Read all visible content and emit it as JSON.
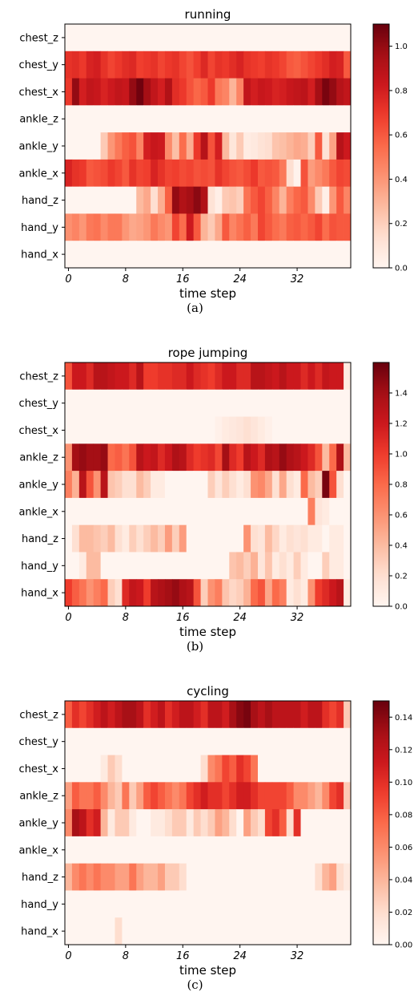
{
  "chart_data": [
    {
      "type": "heatmap",
      "title": "running",
      "caption": "(a)",
      "xlabel": "time step",
      "rows": [
        "chest_z",
        "chest_y",
        "chest_x",
        "ankle_z",
        "ankle_y",
        "ankle_x",
        "hand_z",
        "hand_y",
        "hand_x"
      ],
      "xticks": [
        0,
        8,
        16,
        24,
        32
      ],
      "n_steps": 40,
      "vmin": 0.0,
      "vmax": 1.1,
      "colorbar_ticks": [
        0.0,
        0.2,
        0.4,
        0.6,
        0.8,
        1.0
      ],
      "values": [
        [
          0,
          0,
          0,
          0,
          0,
          0,
          0,
          0,
          0,
          0,
          0,
          0,
          0,
          0,
          0,
          0,
          0,
          0,
          0,
          0,
          0,
          0,
          0,
          0,
          0,
          0,
          0,
          0,
          0,
          0,
          0,
          0,
          0,
          0,
          0,
          0,
          0,
          0,
          0,
          0
        ],
        [
          0.72,
          0.74,
          0.7,
          0.78,
          0.8,
          0.72,
          0.66,
          0.7,
          0.74,
          0.76,
          0.68,
          0.7,
          0.72,
          0.66,
          0.7,
          0.72,
          0.66,
          0.62,
          0.68,
          0.76,
          0.66,
          0.72,
          0.7,
          0.74,
          0.78,
          0.72,
          0.7,
          0.68,
          0.72,
          0.7,
          0.66,
          0.6,
          0.58,
          0.62,
          0.66,
          0.7,
          0.74,
          0.8,
          0.78,
          0.6
        ],
        [
          0.7,
          1.0,
          0.8,
          0.86,
          0.84,
          0.78,
          0.82,
          0.86,
          0.84,
          1.0,
          1.08,
          0.96,
          0.86,
          0.8,
          0.92,
          0.74,
          0.7,
          0.62,
          0.56,
          0.6,
          0.7,
          0.5,
          0.46,
          0.3,
          0.46,
          0.86,
          0.8,
          0.84,
          0.82,
          0.78,
          0.8,
          0.84,
          0.86,
          0.88,
          0.8,
          0.96,
          1.06,
          1.0,
          0.9,
          0.86
        ],
        [
          0,
          0,
          0,
          0,
          0,
          0,
          0,
          0,
          0,
          0,
          0,
          0,
          0,
          0,
          0,
          0,
          0,
          0,
          0,
          0,
          0,
          0,
          0,
          0,
          0,
          0,
          0,
          0,
          0,
          0,
          0,
          0,
          0,
          0,
          0,
          0,
          0,
          0,
          0,
          0
        ],
        [
          0,
          0,
          0,
          0,
          0,
          0.22,
          0.4,
          0.5,
          0.58,
          0.62,
          0.46,
          0.8,
          0.84,
          0.82,
          0.44,
          0.26,
          0.54,
          0.32,
          0.7,
          0.9,
          0.62,
          0.8,
          0.28,
          0.1,
          0.22,
          0.06,
          0.08,
          0.12,
          0.14,
          0.24,
          0.26,
          0.3,
          0.34,
          0.32,
          0.2,
          0.6,
          0.12,
          0.36,
          0.9,
          0.82
        ],
        [
          0.78,
          0.72,
          0.7,
          0.6,
          0.62,
          0.64,
          0.7,
          0.66,
          0.6,
          0.72,
          0.66,
          0.68,
          0.78,
          0.72,
          0.66,
          0.68,
          0.64,
          0.66,
          0.62,
          0.64,
          0.62,
          0.72,
          0.66,
          0.62,
          0.6,
          0.64,
          0.7,
          0.6,
          0.62,
          0.6,
          0.5,
          0.14,
          0.02,
          0.62,
          0.38,
          0.44,
          0.5,
          0.6,
          0.66,
          0.64
        ],
        [
          0,
          0,
          0,
          0,
          0,
          0,
          0,
          0,
          0,
          0,
          0.28,
          0.34,
          0.14,
          0.32,
          0.58,
          1.0,
          0.92,
          0.96,
          1.02,
          0.92,
          0.12,
          0.04,
          0.22,
          0.24,
          0.2,
          0.52,
          0.6,
          0.66,
          0.58,
          0.46,
          0.3,
          0.48,
          0.56,
          0.6,
          0.44,
          0.22,
          0.04,
          0.4,
          0.6,
          0.46
        ],
        [
          0.42,
          0.46,
          0.4,
          0.5,
          0.52,
          0.44,
          0.5,
          0.5,
          0.4,
          0.34,
          0.36,
          0.4,
          0.5,
          0.44,
          0.4,
          0.66,
          0.54,
          0.82,
          0.6,
          0.3,
          0.22,
          0.34,
          0.6,
          0.46,
          0.52,
          0.58,
          0.5,
          0.66,
          0.6,
          0.54,
          0.5,
          0.58,
          0.6,
          0.56,
          0.6,
          0.66,
          0.54,
          0.62,
          0.6,
          0.6
        ],
        [
          0,
          0,
          0,
          0,
          0,
          0,
          0,
          0,
          0,
          0,
          0,
          0,
          0,
          0,
          0,
          0,
          0,
          0,
          0,
          0,
          0,
          0,
          0,
          0,
          0,
          0,
          0,
          0,
          0,
          0,
          0,
          0,
          0,
          0,
          0,
          0,
          0,
          0,
          0,
          0
        ]
      ]
    },
    {
      "type": "heatmap",
      "title": "rope jumping",
      "caption": "(b)",
      "xlabel": "time step",
      "rows": [
        "chest_z",
        "chest_y",
        "chest_x",
        "ankle_z",
        "ankle_y",
        "ankle_x",
        "hand_z",
        "hand_y",
        "hand_x"
      ],
      "xticks": [
        0,
        8,
        16,
        24,
        32
      ],
      "n_steps": 40,
      "vmin": 0.0,
      "vmax": 1.6,
      "colorbar_ticks": [
        0.0,
        0.2,
        0.4,
        0.6,
        0.8,
        1.0,
        1.2,
        1.4
      ],
      "values": [
        [
          0.9,
          1.2,
          1.2,
          1.1,
          1.3,
          1.3,
          1.25,
          1.2,
          1.2,
          1.1,
          1.3,
          1.0,
          1.0,
          1.05,
          1.05,
          1.1,
          1.1,
          1.2,
          1.1,
          1.05,
          1.0,
          1.1,
          1.2,
          1.2,
          1.1,
          1.1,
          1.3,
          1.3,
          1.25,
          1.2,
          1.3,
          1.2,
          1.2,
          1.1,
          1.2,
          1.1,
          1.25,
          1.2,
          1.2,
          0.1
        ],
        [
          0,
          0,
          0,
          0,
          0,
          0,
          0,
          0,
          0,
          0,
          0,
          0,
          0,
          0,
          0,
          0,
          0,
          0,
          0,
          0,
          0,
          0,
          0,
          0,
          0,
          0,
          0,
          0,
          0,
          0,
          0,
          0,
          0,
          0,
          0,
          0,
          0,
          0,
          0,
          0
        ],
        [
          0,
          0,
          0,
          0,
          0,
          0,
          0,
          0,
          0,
          0,
          0,
          0,
          0,
          0,
          0,
          0,
          0,
          0,
          0,
          0,
          0,
          0.05,
          0.1,
          0.12,
          0.15,
          0.2,
          0.15,
          0.1,
          0.05,
          0,
          0,
          0,
          0,
          0,
          0,
          0,
          0,
          0,
          0,
          0
        ],
        [
          0.6,
          1.4,
          1.45,
          1.4,
          1.4,
          1.45,
          0.8,
          0.85,
          0.75,
          0.9,
          1.3,
          1.2,
          1.25,
          1.1,
          1.2,
          1.35,
          1.3,
          1.1,
          1.0,
          1.05,
          1.1,
          0.95,
          1.4,
          1.1,
          1.0,
          1.3,
          1.2,
          1.1,
          1.35,
          1.3,
          1.45,
          1.35,
          1.3,
          1.2,
          1.1,
          0.9,
          0.4,
          0.8,
          1.35,
          0.4
        ],
        [
          0.7,
          0.45,
          1.3,
          0.9,
          0.6,
          1.3,
          0.35,
          0.3,
          0.2,
          0.2,
          0.4,
          0.3,
          0.1,
          0.1,
          0,
          0,
          0,
          0,
          0,
          0,
          0.3,
          0.15,
          0.3,
          0.2,
          0.1,
          0.2,
          0.6,
          0.65,
          0.5,
          0.2,
          0.5,
          0.2,
          0.1,
          0.8,
          0.4,
          0.3,
          1.55,
          0.9,
          0.2,
          0
        ],
        [
          0,
          0,
          0,
          0,
          0,
          0,
          0,
          0,
          0,
          0,
          0,
          0,
          0,
          0,
          0,
          0,
          0,
          0,
          0,
          0,
          0,
          0,
          0,
          0,
          0,
          0,
          0,
          0,
          0,
          0,
          0,
          0,
          0,
          0,
          0.7,
          0.15,
          0.1,
          0,
          0,
          0
        ],
        [
          0,
          0.2,
          0.4,
          0.4,
          0.35,
          0.3,
          0.4,
          0.2,
          0.1,
          0.3,
          0.2,
          0.3,
          0.4,
          0.3,
          0.55,
          0.3,
          0.55,
          0,
          0,
          0,
          0,
          0,
          0,
          0,
          0,
          0.6,
          0.2,
          0.15,
          0.4,
          0.25,
          0.1,
          0.2,
          0.15,
          0.2,
          0.1,
          0.1,
          0,
          0.1,
          0.1,
          0
        ],
        [
          0,
          0,
          0.1,
          0.4,
          0.4,
          0,
          0,
          0,
          0,
          0,
          0,
          0,
          0,
          0,
          0,
          0,
          0,
          0,
          0,
          0,
          0,
          0,
          0,
          0.35,
          0.4,
          0.3,
          0.45,
          0.15,
          0.35,
          0.1,
          0.2,
          0.1,
          0.3,
          0.1,
          0,
          0,
          0.3,
          0.1,
          0.1,
          0
        ],
        [
          1.0,
          0.85,
          0.75,
          0.6,
          0.7,
          0.8,
          0.3,
          0.2,
          1.1,
          1.25,
          1.2,
          1.0,
          1.3,
          1.35,
          1.4,
          1.45,
          1.35,
          1.3,
          0.9,
          0.3,
          0.6,
          0.7,
          0.35,
          0.25,
          0.3,
          0.45,
          0.8,
          0.9,
          0.5,
          0.8,
          0.7,
          0.1,
          0.2,
          0.1,
          0.6,
          1.0,
          1.1,
          1.2,
          1.3,
          0.1
        ]
      ]
    },
    {
      "type": "heatmap",
      "title": "cycling",
      "caption": "(c)",
      "xlabel": "time step",
      "rows": [
        "chest_z",
        "chest_y",
        "chest_x",
        "ankle_z",
        "ankle_y",
        "ankle_x",
        "hand_z",
        "hand_y",
        "hand_x"
      ],
      "xticks": [
        0,
        8,
        16,
        24,
        32
      ],
      "n_steps": 40,
      "vmin": 0.0,
      "vmax": 0.15,
      "colorbar_ticks": [
        0.0,
        0.02,
        0.04,
        0.06,
        0.08,
        0.1,
        0.12,
        0.14
      ],
      "values": [
        [
          0.08,
          0.1,
          0.09,
          0.1,
          0.11,
          0.12,
          0.11,
          0.12,
          0.13,
          0.13,
          0.12,
          0.1,
          0.11,
          0.12,
          0.1,
          0.11,
          0.12,
          0.12,
          0.11,
          0.1,
          0.12,
          0.12,
          0.11,
          0.13,
          0.14,
          0.145,
          0.13,
          0.12,
          0.13,
          0.12,
          0.12,
          0.12,
          0.12,
          0.11,
          0.12,
          0.12,
          0.1,
          0.09,
          0.1,
          0.03
        ],
        [
          0,
          0,
          0,
          0,
          0,
          0,
          0,
          0,
          0,
          0,
          0,
          0,
          0,
          0,
          0,
          0,
          0,
          0,
          0,
          0,
          0,
          0,
          0,
          0,
          0,
          0,
          0,
          0,
          0,
          0,
          0,
          0,
          0,
          0,
          0,
          0,
          0,
          0,
          0,
          0
        ],
        [
          0,
          0,
          0,
          0,
          0,
          0.01,
          0.03,
          0.02,
          0,
          0,
          0,
          0,
          0,
          0,
          0,
          0,
          0,
          0,
          0,
          0.02,
          0.06,
          0.07,
          0.09,
          0.08,
          0.1,
          0.09,
          0.07,
          0,
          0,
          0,
          0,
          0,
          0,
          0,
          0,
          0,
          0,
          0,
          0,
          0
        ],
        [
          0.05,
          0.08,
          0.07,
          0.07,
          0.08,
          0.06,
          0.04,
          0.03,
          0.07,
          0.03,
          0.05,
          0.08,
          0.09,
          0.08,
          0.07,
          0.06,
          0.07,
          0.09,
          0.1,
          0.11,
          0.1,
          0.1,
          0.09,
          0.1,
          0.11,
          0.11,
          0.1,
          0.09,
          0.09,
          0.09,
          0.09,
          0.08,
          0.06,
          0.06,
          0.05,
          0.04,
          0.06,
          0.09,
          0.1,
          0.03
        ],
        [
          0.06,
          0.13,
          0.12,
          0.1,
          0.11,
          0.04,
          0.01,
          0.03,
          0.03,
          0.01,
          0,
          0,
          0.01,
          0.01,
          0.02,
          0.03,
          0.03,
          0.01,
          0.03,
          0.02,
          0.03,
          0.05,
          0.04,
          0.02,
          0,
          0.05,
          0.03,
          0.02,
          0.09,
          0.1,
          0.08,
          0.02,
          0.1,
          0,
          0,
          0,
          0,
          0,
          0,
          0
        ],
        [
          0,
          0,
          0,
          0,
          0,
          0,
          0,
          0,
          0,
          0,
          0,
          0,
          0,
          0,
          0,
          0,
          0,
          0,
          0,
          0,
          0,
          0,
          0,
          0,
          0,
          0,
          0,
          0,
          0,
          0,
          0,
          0,
          0,
          0,
          0,
          0,
          0,
          0,
          0,
          0
        ],
        [
          0.04,
          0.06,
          0.07,
          0.06,
          0.07,
          0.06,
          0.06,
          0.05,
          0.05,
          0.07,
          0.05,
          0.04,
          0.04,
          0.05,
          0.03,
          0.03,
          0.02,
          0,
          0,
          0,
          0,
          0,
          0,
          0,
          0,
          0,
          0,
          0,
          0,
          0,
          0,
          0,
          0,
          0,
          0,
          0.02,
          0.04,
          0.05,
          0.02,
          0.01
        ],
        [
          0,
          0,
          0,
          0,
          0,
          0,
          0,
          0,
          0,
          0,
          0,
          0,
          0,
          0,
          0,
          0,
          0,
          0,
          0,
          0,
          0,
          0,
          0,
          0,
          0,
          0,
          0,
          0,
          0,
          0,
          0,
          0,
          0,
          0,
          0,
          0,
          0,
          0,
          0,
          0
        ],
        [
          0,
          0,
          0,
          0,
          0,
          0,
          0,
          0.02,
          0,
          0,
          0,
          0,
          0,
          0,
          0,
          0,
          0,
          0,
          0,
          0,
          0,
          0,
          0,
          0,
          0,
          0,
          0,
          0,
          0,
          0,
          0,
          0,
          0,
          0,
          0,
          0,
          0,
          0,
          0,
          0
        ]
      ]
    }
  ]
}
